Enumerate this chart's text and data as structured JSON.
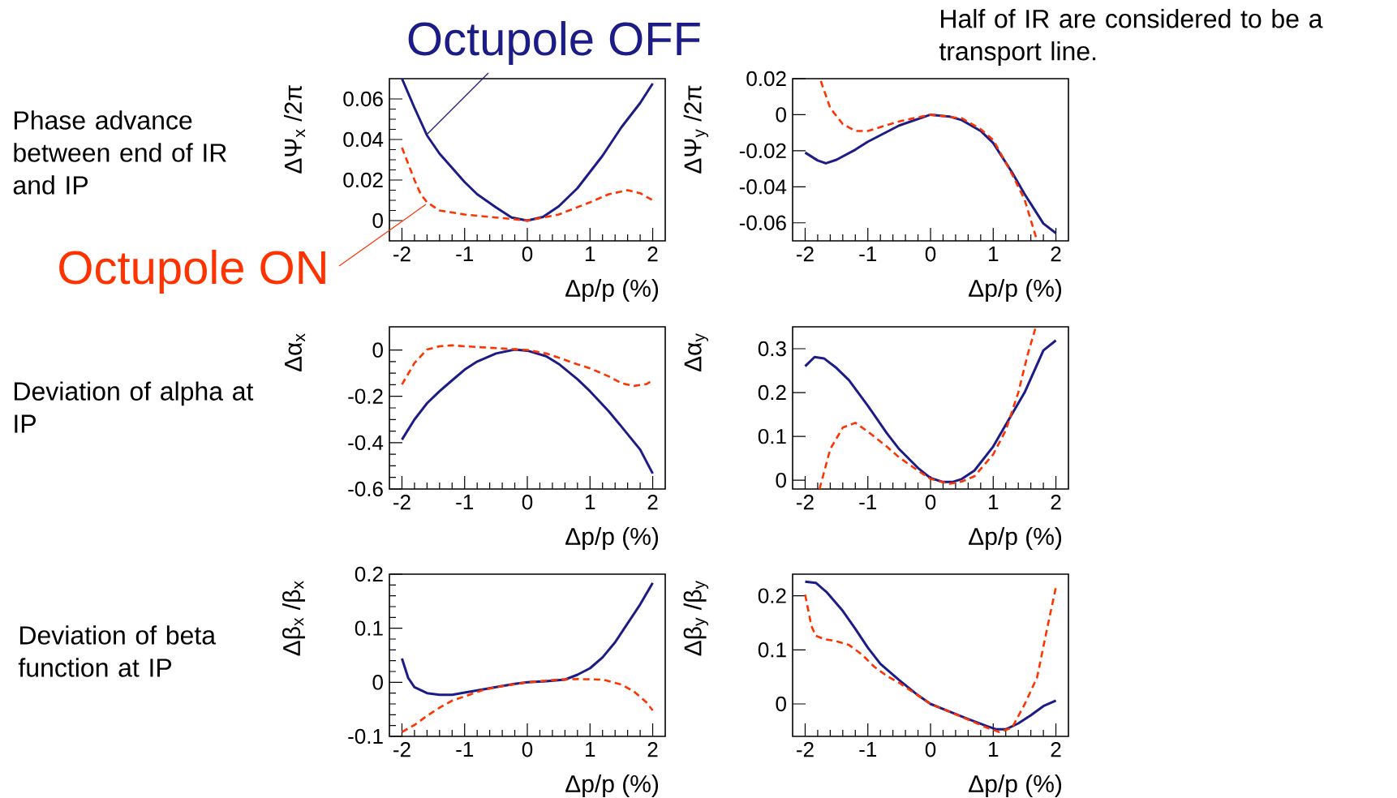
{
  "chart_data": [
    {
      "type": "line",
      "xlabel": "Δp/p (%)",
      "ylabel": "ΔΨ$_{x}$ /2π",
      "xlim": [
        -2.2,
        2.2
      ],
      "ylim": [
        -0.01,
        0.07
      ],
      "xticks": [
        -2,
        -1,
        0,
        1,
        2
      ],
      "yticks": [
        0,
        0.02,
        0.04,
        0.06
      ],
      "annotations": [
        "Phase advance between end of IR and IP"
      ],
      "series": [
        {
          "name": "Octupole OFF",
          "color": "#1c1c87",
          "line_style": "solid",
          "x": [
            -2,
            -1.8,
            -1.6,
            -1.4,
            -1.2,
            -1,
            -0.8,
            -0.5,
            -0.25,
            0,
            0.25,
            0.5,
            0.8,
            1,
            1.2,
            1.5,
            1.8,
            2
          ],
          "values": [
            0.07,
            0.0556,
            0.042,
            0.033,
            0.026,
            0.019,
            0.013,
            0.0065,
            0.0015,
            0,
            0.0018,
            0.007,
            0.016,
            0.024,
            0.032,
            0.046,
            0.058,
            0.0676
          ]
        },
        {
          "name": "Octupole ON",
          "color": "#ff3300",
          "line_style": "dashed",
          "x": [
            -2,
            -1.9,
            -1.8,
            -1.7,
            -1.6,
            -1.4,
            -1.2,
            -1,
            -0.5,
            0,
            0.5,
            1,
            1.3,
            1.6,
            1.8,
            2
          ],
          "values": [
            0.036,
            0.028,
            0.02,
            0.013,
            0.009,
            0.005,
            0.004,
            0.003,
            0.0015,
            0,
            0.003,
            0.009,
            0.013,
            0.015,
            0.0135,
            0.01
          ]
        }
      ]
    },
    {
      "type": "line",
      "xlabel": "Δp/p (%)",
      "ylabel": "ΔΨ$_{y}$ /2π",
      "xlim": [
        -2.2,
        2.2
      ],
      "ylim": [
        -0.07,
        0.02
      ],
      "xticks": [
        -2,
        -1,
        0,
        1,
        2
      ],
      "yticks": [
        -0.06,
        -0.04,
        -0.02,
        0,
        0.02
      ],
      "annotations": [
        "Half of IR are considered to be a transport line."
      ],
      "series": [
        {
          "color": "#1c1c87",
          "line_style": "solid",
          "x": [
            -2,
            -1.8,
            -1.67,
            -1.5,
            -1.2,
            -1,
            -0.5,
            0,
            0.3,
            0.5,
            0.8,
            1,
            1.3,
            1.5,
            1.8,
            2
          ],
          "values": [
            -0.021,
            -0.0254,
            -0.027,
            -0.025,
            -0.0194,
            -0.015,
            -0.006,
            0,
            -0.001,
            -0.003,
            -0.009,
            -0.0157,
            -0.032,
            -0.044,
            -0.0604,
            -0.0657
          ]
        },
        {
          "color": "#ff3300",
          "line_style": "dashed",
          "x": [
            -1.75,
            -1.6,
            -1.4,
            -1.2,
            -1,
            -0.5,
            0,
            0.5,
            0.8,
            1,
            1.3,
            1.5,
            1.7
          ],
          "values": [
            0.0187,
            0.0037,
            -0.0052,
            -0.009,
            -0.009,
            -0.0037,
            0,
            -0.002,
            -0.008,
            -0.014,
            -0.033,
            -0.047,
            -0.07
          ]
        }
      ]
    },
    {
      "type": "line",
      "xlabel": "Δp/p (%)",
      "ylabel": "Δα$_{x}$",
      "xlim": [
        -2.2,
        2.2
      ],
      "ylim": [
        -0.6,
        0.1
      ],
      "xticks": [
        -2,
        -1,
        0,
        1,
        2
      ],
      "yticks": [
        -0.6,
        -0.4,
        -0.2,
        0
      ],
      "annotations": [
        "Deviation of alpha at IP"
      ],
      "series": [
        {
          "color": "#1c1c87",
          "line_style": "solid",
          "x": [
            -2,
            -1.8,
            -1.6,
            -1.4,
            -1.2,
            -1,
            -0.8,
            -0.5,
            -0.2,
            0,
            0.3,
            0.5,
            0.8,
            1,
            1.3,
            1.5,
            1.8,
            2
          ],
          "values": [
            -0.387,
            -0.3,
            -0.23,
            -0.178,
            -0.131,
            -0.085,
            -0.05,
            -0.015,
            0.002,
            -0.003,
            -0.027,
            -0.06,
            -0.126,
            -0.178,
            -0.265,
            -0.33,
            -0.43,
            -0.533
          ]
        },
        {
          "color": "#ff3300",
          "line_style": "dashed",
          "x": [
            -2,
            -1.8,
            -1.6,
            -1.4,
            -1.2,
            -1,
            -0.5,
            0,
            0.3,
            0.5,
            0.8,
            1,
            1.3,
            1.5,
            1.7,
            1.9,
            2
          ],
          "values": [
            -0.149,
            -0.056,
            0.002,
            0.016,
            0.02,
            0.016,
            0.008,
            0,
            -0.015,
            -0.033,
            -0.062,
            -0.079,
            -0.114,
            -0.143,
            -0.155,
            -0.147,
            -0.131
          ]
        }
      ]
    },
    {
      "type": "line",
      "xlabel": "Δp/p (%)",
      "ylabel": "Δα$_{y}$",
      "xlim": [
        -2.2,
        2.2
      ],
      "ylim": [
        -0.02,
        0.35
      ],
      "xticks": [
        -2,
        -1,
        0,
        1,
        2
      ],
      "yticks": [
        0,
        0.1,
        0.2,
        0.3
      ],
      "series": [
        {
          "color": "#1c1c87",
          "line_style": "solid",
          "x": [
            -2,
            -1.85,
            -1.7,
            -1.5,
            -1.3,
            -1,
            -0.7,
            -0.5,
            -0.2,
            0,
            0.2,
            0.35,
            0.5,
            0.7,
            1,
            1.3,
            1.5,
            1.8,
            2
          ],
          "values": [
            0.26,
            0.281,
            0.278,
            0.256,
            0.228,
            0.17,
            0.108,
            0.071,
            0.028,
            0.005,
            -0.004,
            -0.004,
            0.003,
            0.022,
            0.077,
            0.151,
            0.2,
            0.296,
            0.319
          ]
        },
        {
          "color": "#ff3300",
          "line_style": "dashed",
          "x": [
            -1.77,
            -1.6,
            -1.4,
            -1.2,
            -1,
            -0.7,
            -0.5,
            -0.2,
            0,
            0.3,
            0.5,
            0.7,
            1,
            1.2,
            1.4,
            1.55,
            1.68
          ],
          "values": [
            -0.02,
            0.071,
            0.12,
            0.131,
            0.111,
            0.077,
            0.052,
            0.022,
            0.003,
            -0.008,
            -0.003,
            0.009,
            0.059,
            0.114,
            0.2,
            0.287,
            0.35
          ]
        }
      ]
    },
    {
      "type": "line",
      "xlabel": "Δp/p (%)",
      "ylabel": "Δβ$_{x}$ /β$_{x}$",
      "xlim": [
        -2.2,
        2.2
      ],
      "ylim": [
        -0.1,
        0.2
      ],
      "xticks": [
        -2,
        -1,
        0,
        1,
        2
      ],
      "yticks": [
        -0.1,
        0,
        0.1,
        0.2
      ],
      "annotations": [
        "Deviation of beta function at IP"
      ],
      "series": [
        {
          "color": "#1c1c87",
          "line_style": "solid",
          "x": [
            -2,
            -1.9,
            -1.8,
            -1.6,
            -1.4,
            -1.2,
            -1,
            -0.7,
            -0.5,
            -0.2,
            0,
            0.3,
            0.6,
            0.8,
            1,
            1.2,
            1.4,
            1.6,
            1.8,
            2
          ],
          "values": [
            0.044,
            0.008,
            -0.009,
            -0.02,
            -0.023,
            -0.023,
            -0.019,
            -0.013,
            -0.009,
            -0.003,
            0,
            0.002,
            0.005,
            0.014,
            0.026,
            0.046,
            0.074,
            0.109,
            0.144,
            0.184
          ]
        },
        {
          "color": "#ff3300",
          "line_style": "dashed",
          "x": [
            -2,
            -1.8,
            -1.6,
            -1.4,
            -1.2,
            -1,
            -0.7,
            -0.5,
            0,
            0.5,
            0.8,
            1.2,
            1.5,
            1.7,
            1.9,
            2
          ],
          "values": [
            -0.092,
            -0.079,
            -0.062,
            -0.047,
            -0.034,
            -0.026,
            -0.014,
            -0.009,
            0,
            0.005,
            0.006,
            0.005,
            -0.004,
            -0.017,
            -0.037,
            -0.052
          ]
        }
      ]
    },
    {
      "type": "line",
      "xlabel": "Δp/p (%)",
      "ylabel": "Δβ$_{y}$ /β$_{y}$",
      "xlim": [
        -2.2,
        2.2
      ],
      "ylim": [
        -0.06,
        0.24
      ],
      "xticks": [
        -2,
        -1,
        0,
        1,
        2
      ],
      "yticks": [
        0,
        0.1,
        0.2
      ],
      "series": [
        {
          "color": "#1c1c87",
          "line_style": "solid",
          "x": [
            -2,
            -1.83,
            -1.65,
            -1.4,
            -1.2,
            -1,
            -0.8,
            -0.5,
            -0.2,
            0,
            0.3,
            0.6,
            0.9,
            1.05,
            1.2,
            1.4,
            1.6,
            1.8,
            2
          ],
          "values": [
            0.226,
            0.224,
            0.206,
            0.172,
            0.139,
            0.104,
            0.074,
            0.044,
            0.016,
            0,
            -0.014,
            -0.028,
            -0.041,
            -0.047,
            -0.047,
            -0.036,
            -0.021,
            -0.004,
            0.006
          ]
        },
        {
          "color": "#ff3300",
          "line_style": "dashed",
          "x": [
            -2,
            -1.9,
            -1.83,
            -1.7,
            -1.5,
            -1.3,
            -1.1,
            -0.9,
            -0.7,
            -0.5,
            0,
            0.5,
            0.9,
            1.1,
            1.3,
            1.5,
            1.7,
            1.85,
            2
          ],
          "values": [
            0.202,
            0.144,
            0.126,
            0.12,
            0.116,
            0.109,
            0.092,
            0.069,
            0.052,
            0.039,
            0,
            -0.024,
            -0.044,
            -0.052,
            -0.044,
            -0.001,
            0.049,
            0.134,
            0.216
          ]
        }
      ]
    }
  ]
}
